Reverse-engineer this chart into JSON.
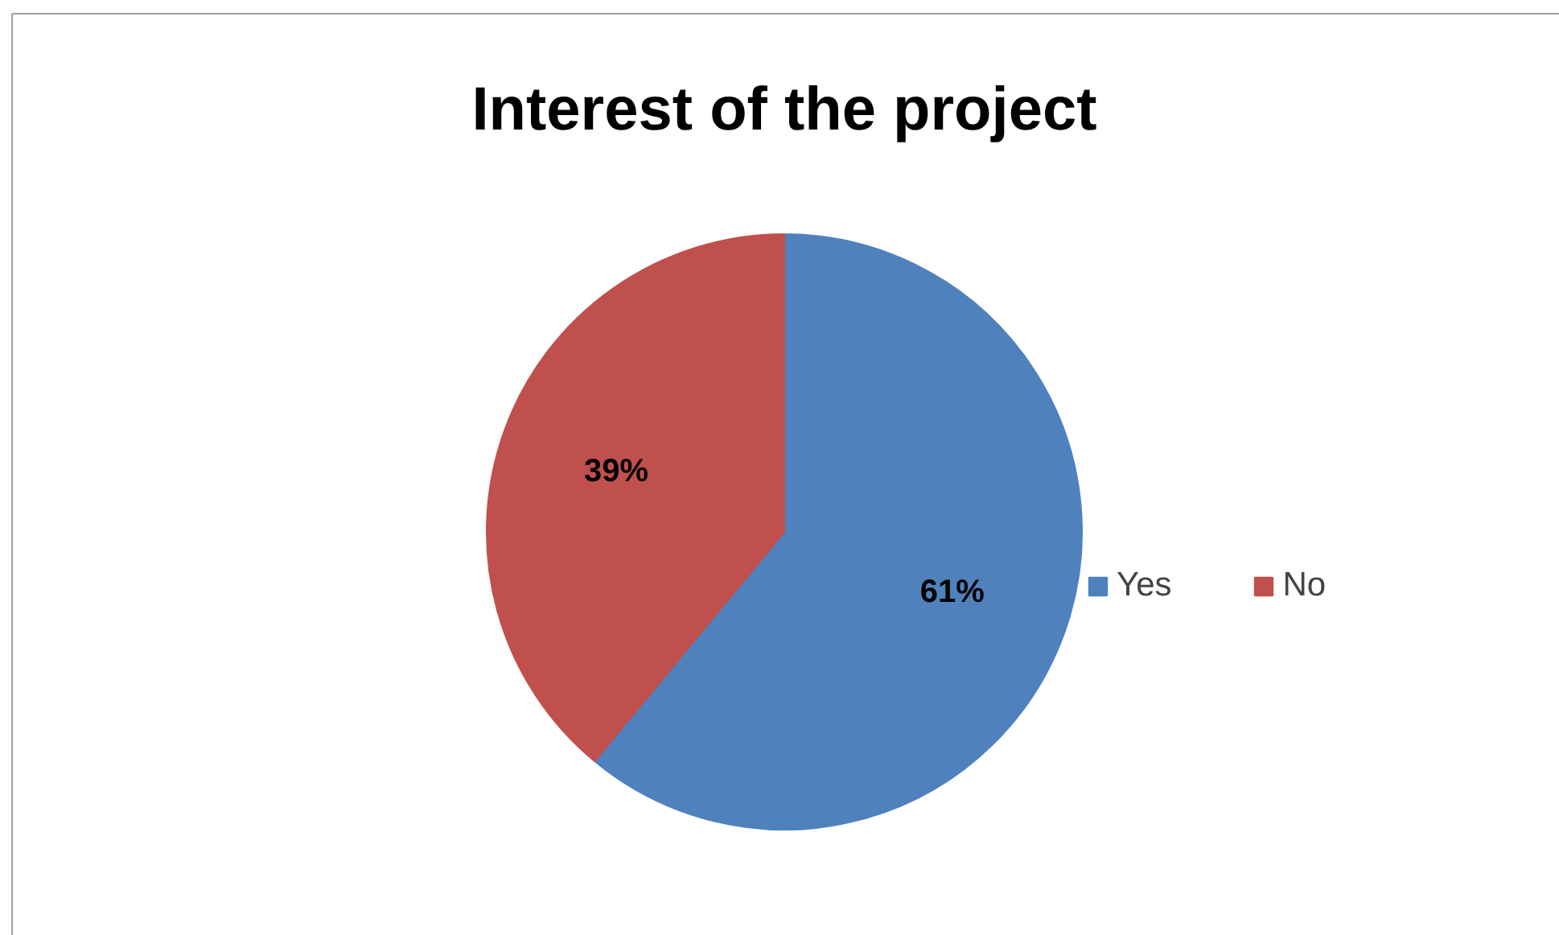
{
  "chart_data": {
    "type": "pie",
    "title": "Interest of the project",
    "categories": [
      "Yes",
      "No"
    ],
    "values": [
      61,
      39
    ],
    "colors": [
      "#4f81bd",
      "#c0504d"
    ],
    "value_labels": [
      "61%",
      "39%"
    ],
    "legend": "right"
  }
}
